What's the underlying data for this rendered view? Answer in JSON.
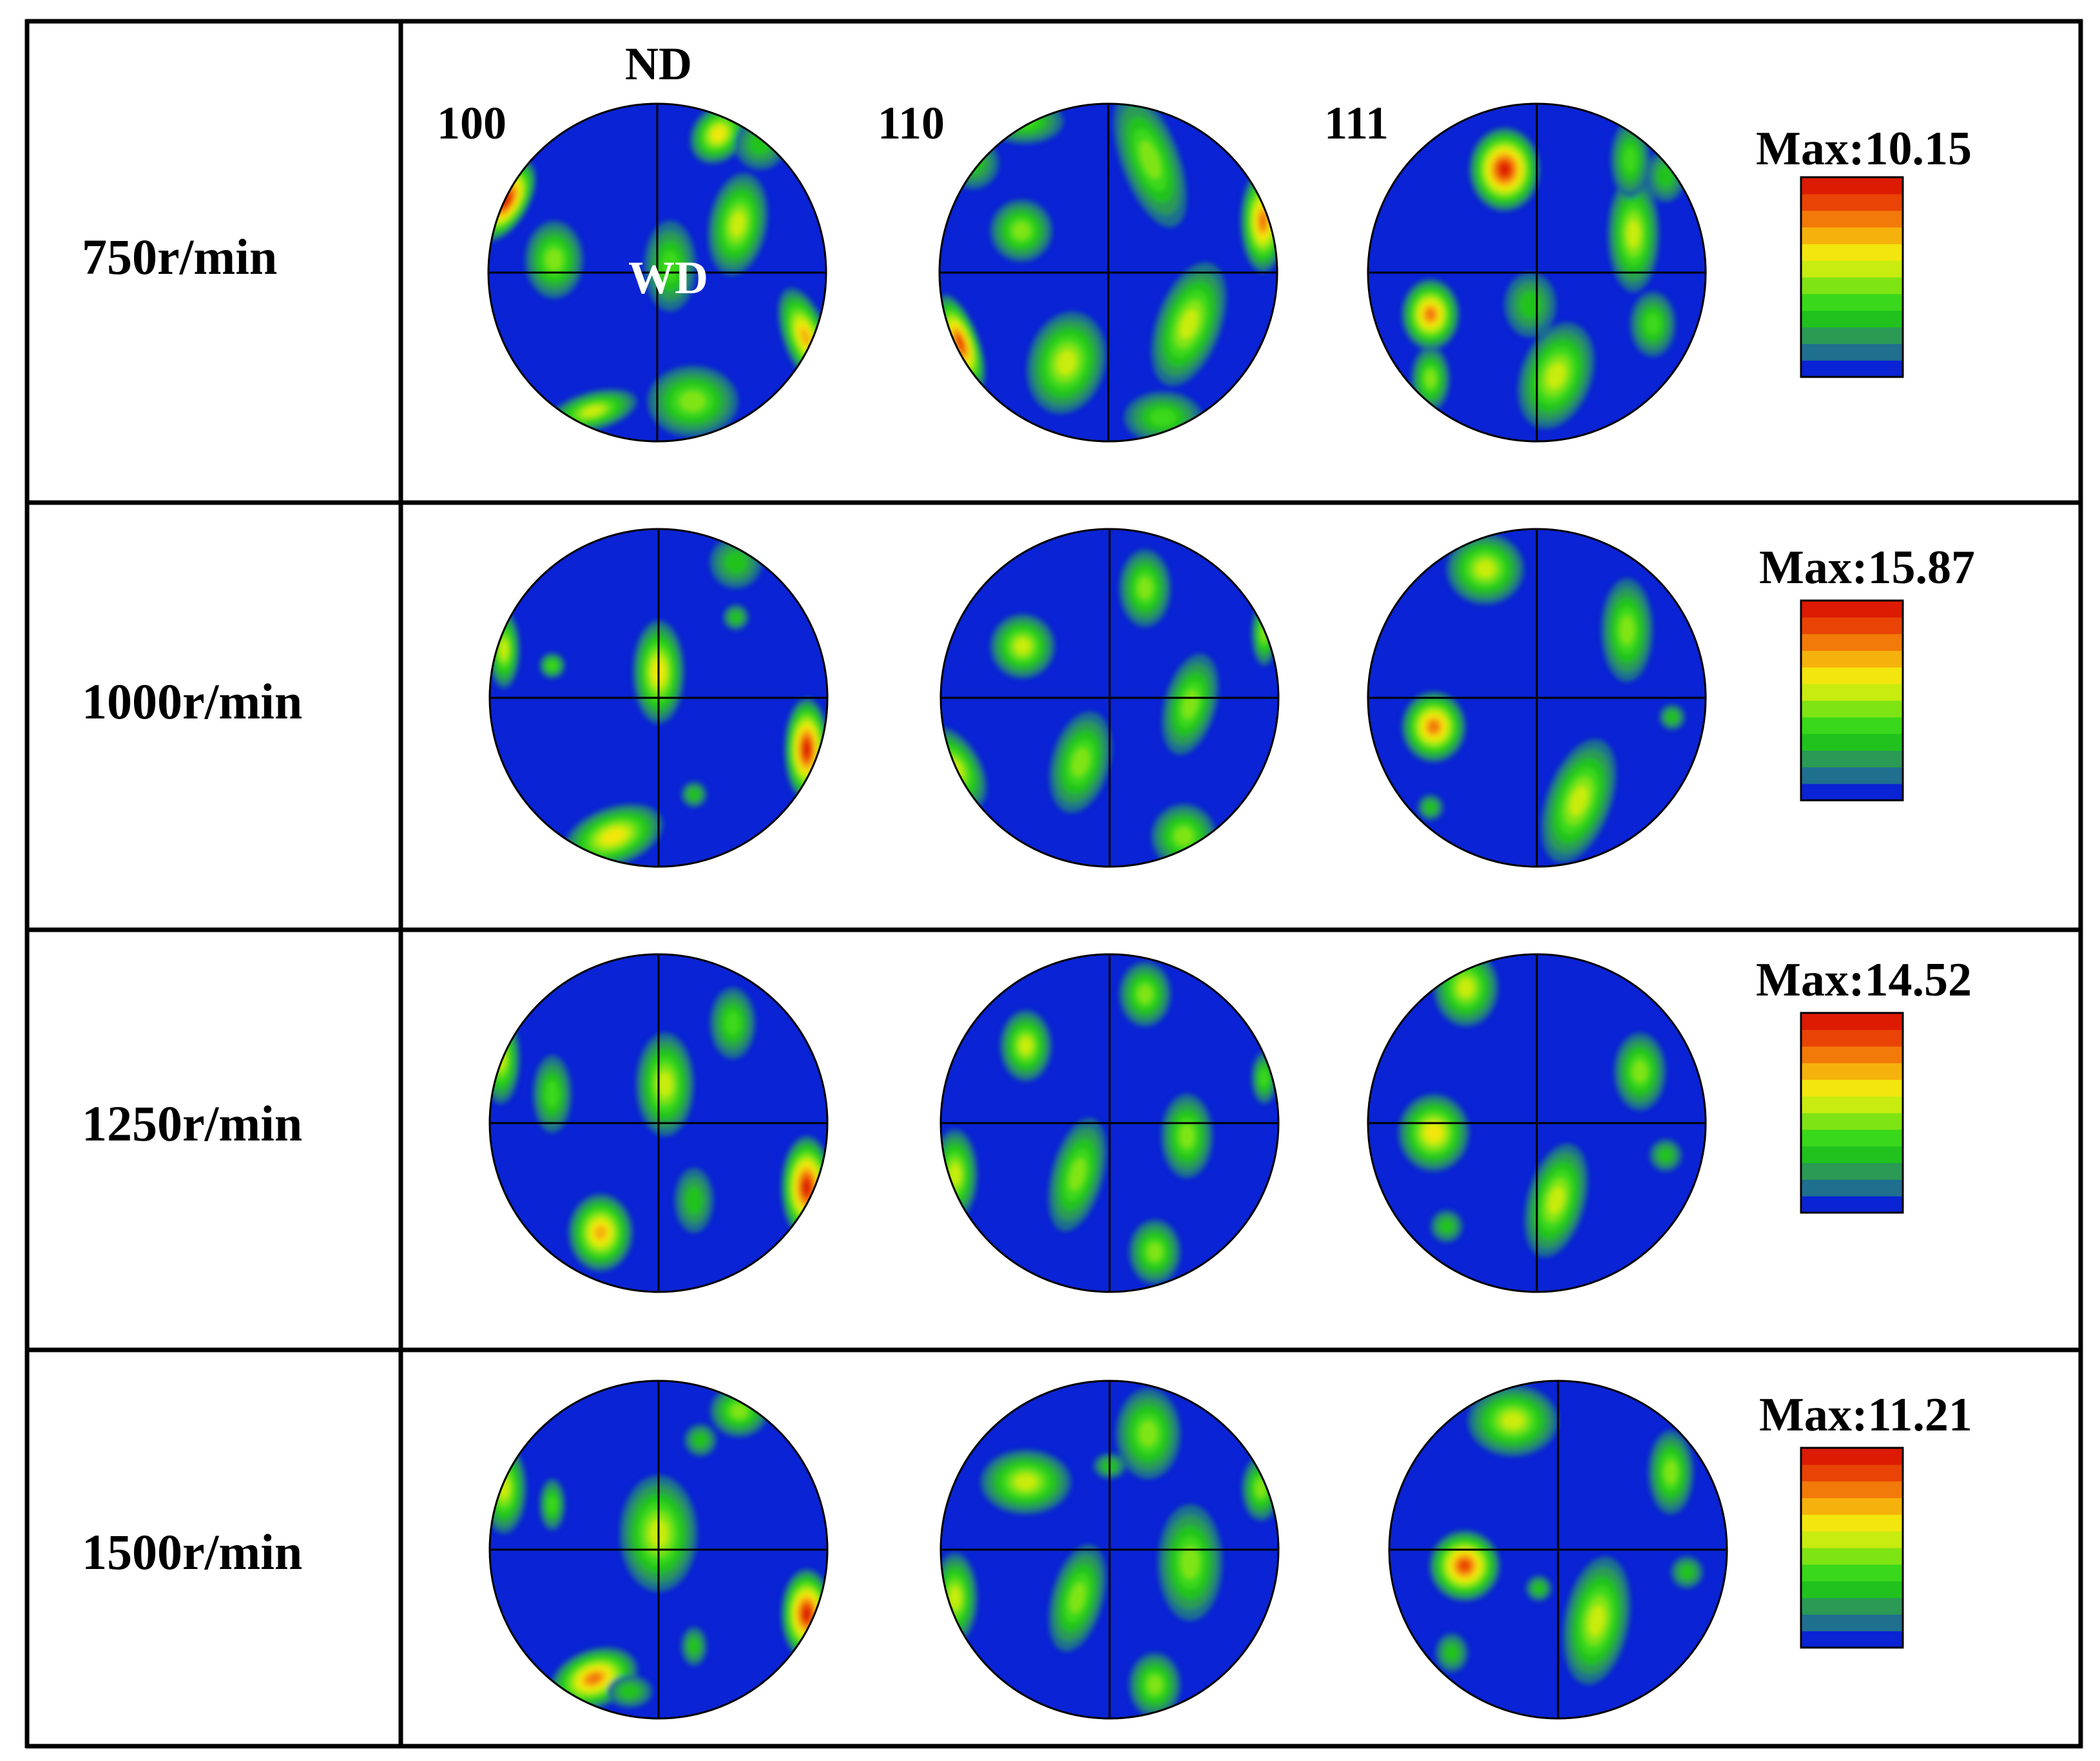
{
  "headers": {
    "nd_label": "ND",
    "wd_label": "WD",
    "pf_100": "100",
    "pf_110": "110",
    "pf_111": "111"
  },
  "rows": [
    {
      "speed": "750r/min",
      "max_label": "Max:10.15"
    },
    {
      "speed": "1000r/min",
      "max_label": "Max:15.87"
    },
    {
      "speed": "1250r/min",
      "max_label": "Max:14.52"
    },
    {
      "speed": "1500r/min",
      "max_label": "Max:11.21"
    }
  ],
  "colors": {
    "background": "#0a23d4",
    "scale": [
      "#0a23d4",
      "#1f6f8f",
      "#2a9a55",
      "#21c21e",
      "#3ad81a",
      "#7fe414",
      "#c8ec10",
      "#f3e60e",
      "#f6b20c",
      "#f27a09",
      "#e94405",
      "#dd1a02"
    ]
  }
}
